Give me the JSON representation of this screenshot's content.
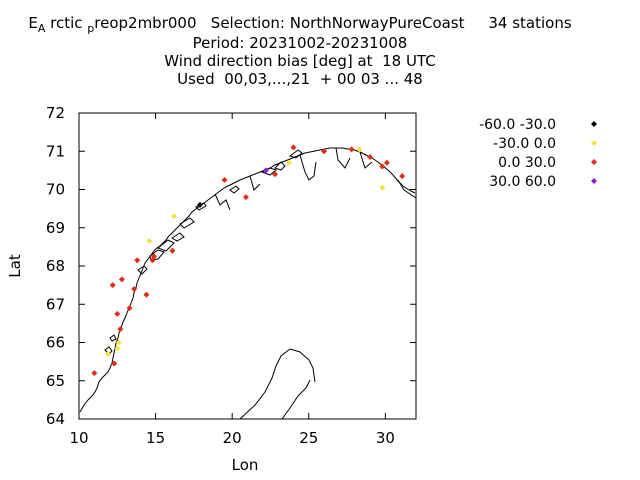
{
  "title": {
    "line1_pre": "E",
    "line1_sub1": "A",
    "line1_mid": " rctic ",
    "line1_sub2": "p",
    "line1_post": "reop2mbr000   Selection: NorthNorwayPureCoast     34 stations",
    "line2": "Period: 20231002-20231008",
    "line3": "Wind direction bias [deg] at  18 UTC",
    "line4": "Used  00,03,...,21  + 00 03 ... 48"
  },
  "chart_data": {
    "type": "scatter",
    "xlabel": "Lon",
    "ylabel": "Lat",
    "xlim": [
      10,
      32
    ],
    "ylim": [
      64,
      72
    ],
    "xticks": [
      10,
      15,
      20,
      25,
      30
    ],
    "yticks": [
      64,
      65,
      66,
      67,
      68,
      69,
      70,
      71,
      72
    ],
    "legend_position": "right",
    "series": [
      {
        "name": "-60.0 -30.0",
        "color": "#000000",
        "points": [
          [
            17.9,
            69.6
          ]
        ]
      },
      {
        "name": "-30.0 0.0",
        "color": "#f0e442",
        "points": [
          [
            16.2,
            69.3
          ],
          [
            14.6,
            68.65
          ],
          [
            12.5,
            65.85
          ],
          [
            12.6,
            66.0
          ],
          [
            11.9,
            65.7
          ],
          [
            23.7,
            70.7
          ],
          [
            28.3,
            71.05
          ],
          [
            29.8,
            70.05
          ]
        ]
      },
      {
        "name": "0.0 30.0",
        "color": "#e32c16",
        "points": [
          [
            11.0,
            65.2
          ],
          [
            12.3,
            65.45
          ],
          [
            12.7,
            66.35
          ],
          [
            12.5,
            66.75
          ],
          [
            13.3,
            66.9
          ],
          [
            13.6,
            67.4
          ],
          [
            14.4,
            67.25
          ],
          [
            12.2,
            67.5
          ],
          [
            12.8,
            67.65
          ],
          [
            13.8,
            68.15
          ],
          [
            14.8,
            68.15
          ],
          [
            14.9,
            68.25
          ],
          [
            16.1,
            68.4
          ],
          [
            19.5,
            70.25
          ],
          [
            20.9,
            69.8
          ],
          [
            22.8,
            70.4
          ],
          [
            24.0,
            71.1
          ],
          [
            26.0,
            71.0
          ],
          [
            27.8,
            71.05
          ],
          [
            29.0,
            70.85
          ],
          [
            29.8,
            70.6
          ],
          [
            30.1,
            70.7
          ],
          [
            31.1,
            70.35
          ]
        ]
      },
      {
        "name": "30.0 60.0",
        "color": "#8b1ed8",
        "points": [
          [
            22.2,
            70.5
          ]
        ]
      }
    ]
  }
}
